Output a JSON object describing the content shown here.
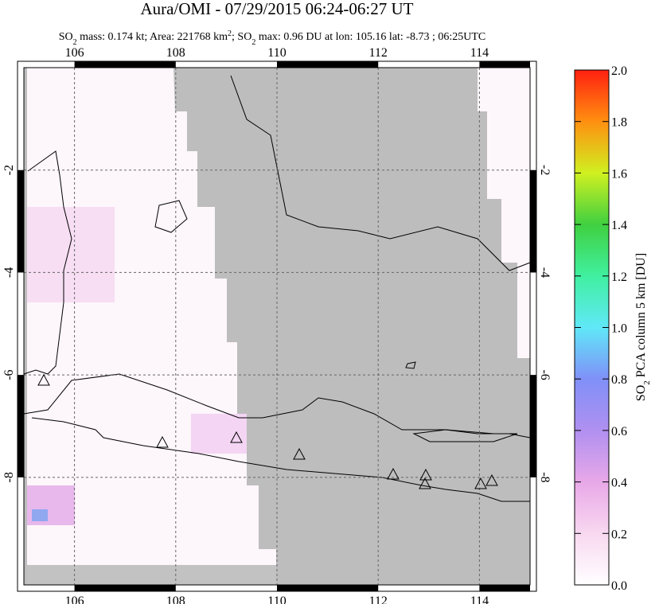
{
  "title": "Aura/OMI - 07/29/2015 06:24-06:27 UT",
  "subtitle": [
    "SO",
    "2",
    " mass: 0.174 kt; Area: 221768 km",
    "2",
    "; SO",
    "2",
    " max: 0.96 DU at lon: 105.16 lat: -8.73 ; 06:25UTC"
  ],
  "map": {
    "lonlim": [
      105,
      115
    ],
    "latlim": [
      -10.1,
      0
    ],
    "lon_ticks": [
      106,
      108,
      110,
      112,
      114
    ],
    "lat_ticks": [
      -2,
      -4,
      -6,
      -8
    ]
  },
  "colorbar": {
    "lim": [
      0,
      2
    ],
    "ticks": [
      {
        "value": 0,
        "label": "0.0"
      },
      0.2,
      0.4,
      0.6,
      0.8,
      {
        "value": 1,
        "label": "1.0"
      },
      1.2,
      1.4,
      1.6,
      1.8,
      {
        "value": 2,
        "label": "2.0"
      }
    ],
    "label": [
      "SO",
      "2",
      " PCA column 5 km [DU]"
    ]
  }
}
